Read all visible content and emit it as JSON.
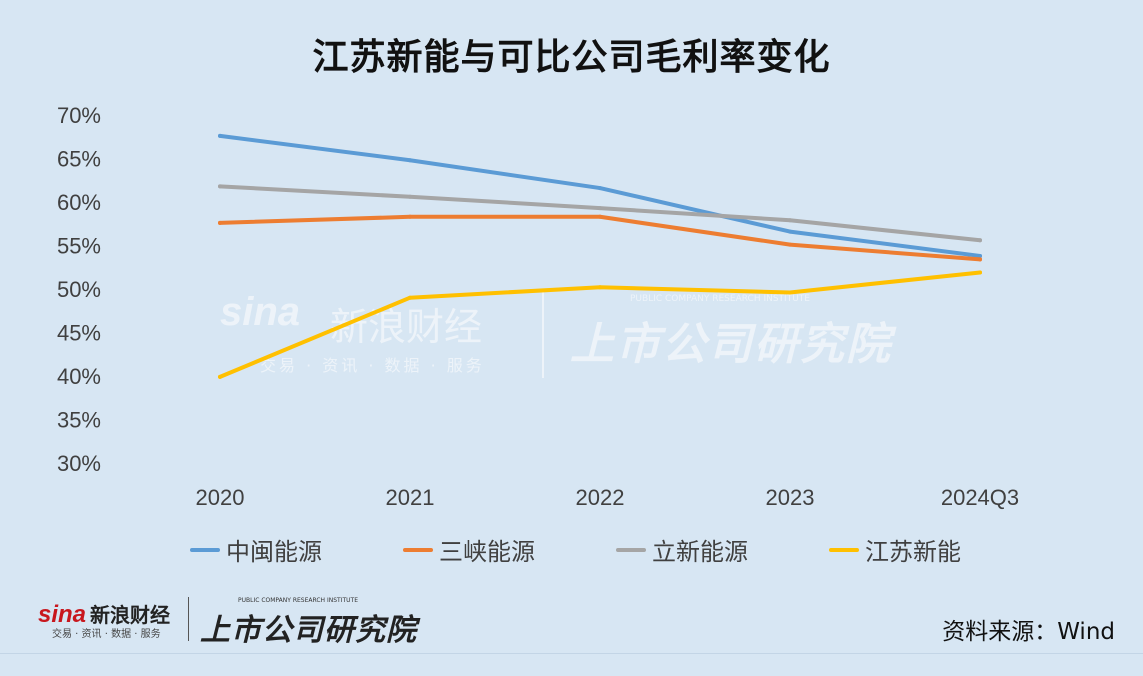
{
  "title": "江苏新能与可比公司毛利率变化",
  "source": "资料来源：Wind",
  "watermark": {
    "brand_mark": "sina",
    "brand_cn": "新浪财经",
    "brand_sub": "交易 · 资讯 · 数据 · 服务",
    "institute": "上市公司研究院",
    "institute_sub": "PUBLIC COMPANY RESEARCH INSTITUTE"
  },
  "footer_logo": {
    "brand_mark": "sina",
    "brand_cn": "新浪财经",
    "brand_sub": "交易 · 资讯 · 数据 · 服务",
    "institute": "上市公司研究院",
    "institute_sub": "PUBLIC COMPANY RESEARCH INSTITUTE"
  },
  "chart_data": {
    "type": "line",
    "title": "江苏新能与可比公司毛利率变化",
    "xlabel": "",
    "ylabel": "",
    "x": [
      "2020",
      "2021",
      "2022",
      "2023",
      "2024Q3"
    ],
    "ylim": [
      30,
      70
    ],
    "y_ticks": [
      "30%",
      "35%",
      "40%",
      "45%",
      "50%",
      "55%",
      "60%",
      "65%",
      "70%"
    ],
    "grid": false,
    "legend_position": "bottom",
    "series": [
      {
        "name": "中闽能源",
        "color": "#5b9bd5",
        "values": [
          67.6,
          64.8,
          61.6,
          56.6,
          53.8
        ]
      },
      {
        "name": "三峡能源",
        "color": "#ed7d31",
        "values": [
          57.6,
          58.3,
          58.3,
          55.1,
          53.4
        ]
      },
      {
        "name": "立新能源",
        "color": "#a5a5a5",
        "values": [
          61.8,
          60.6,
          59.3,
          57.9,
          55.6
        ]
      },
      {
        "name": "江苏新能",
        "color": "#ffc000",
        "values": [
          39.9,
          49.0,
          50.2,
          49.6,
          51.9
        ]
      }
    ]
  }
}
